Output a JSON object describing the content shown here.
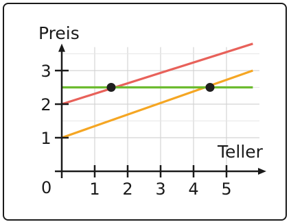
{
  "chart_data": {
    "type": "line",
    "xlabel": "Teller",
    "ylabel": "Preis",
    "origin_label": "0",
    "x_ticks": [
      1,
      2,
      3,
      4,
      5
    ],
    "y_ticks": [
      1,
      2,
      3
    ],
    "xlim": [
      0,
      6
    ],
    "ylim": [
      0,
      4
    ],
    "grid": true,
    "series": [
      {
        "color": "#e8615a",
        "x": [
          0,
          5.8
        ],
        "y": [
          2.0,
          3.8
        ]
      },
      {
        "color": "#f5a623",
        "x": [
          0,
          5.8
        ],
        "y": [
          1.0,
          3.0
        ]
      },
      {
        "color": "#6cbb2f",
        "x": [
          0,
          5.8
        ],
        "y": [
          2.5,
          2.5
        ]
      }
    ],
    "points": [
      {
        "x": 1.5,
        "y": 2.5
      },
      {
        "x": 4.5,
        "y": 2.5
      }
    ],
    "colors": {
      "axis": "#1a1a1a",
      "grid": "#d4d4d4",
      "point": "#1f1f1f"
    }
  }
}
